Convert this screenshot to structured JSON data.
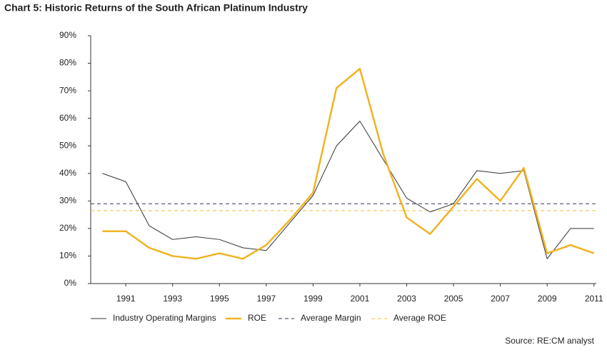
{
  "chart_data": {
    "type": "line",
    "title": "Chart 5: Historic Returns of the South African Platinum Industry",
    "source": "Source: RE:CM analyst",
    "x": [
      1990,
      1991,
      1992,
      1993,
      1994,
      1995,
      1996,
      1997,
      1998,
      1999,
      2000,
      2001,
      2002,
      2003,
      2004,
      2005,
      2006,
      2007,
      2008,
      2009,
      2010,
      2011
    ],
    "series": [
      {
        "name": "Industry Operating Margins",
        "color": "#333333",
        "width": 1,
        "values": [
          40,
          37,
          21,
          16,
          17,
          16,
          13,
          12,
          22,
          32,
          50,
          59,
          45,
          31,
          26,
          29,
          41,
          40,
          41,
          9,
          20,
          20
        ]
      },
      {
        "name": "ROE",
        "color": "#f0b323",
        "width": 2.5,
        "values": [
          19,
          19,
          13,
          10,
          9,
          11,
          9,
          14,
          23,
          33,
          71,
          78,
          47,
          24,
          18,
          28,
          38,
          30,
          42,
          11,
          14,
          11
        ]
      }
    ],
    "reference_lines": [
      {
        "name": "Average Margin",
        "color": "#333355",
        "value": 29
      },
      {
        "name": "Average ROE",
        "color": "#f0c040",
        "value": 26.5
      }
    ],
    "xlim": [
      1989.5,
      2011.1
    ],
    "xticks": [
      1991,
      1993,
      1995,
      1997,
      1999,
      2001,
      2003,
      2005,
      2007,
      2009,
      2011
    ],
    "ylim": [
      0,
      90
    ],
    "yticks": [
      {
        "value": 0,
        "label": "0%"
      },
      {
        "value": 10,
        "label": "10%"
      },
      {
        "value": 20,
        "label": "20%"
      },
      {
        "value": 30,
        "label": "30%"
      },
      {
        "value": 40,
        "label": "40%"
      },
      {
        "value": 50,
        "label": "50%"
      },
      {
        "value": 60,
        "label": "60%"
      },
      {
        "value": 70,
        "label": "70%"
      },
      {
        "value": 80,
        "label": "80%"
      },
      {
        "value": 90,
        "label": "90%"
      }
    ]
  }
}
